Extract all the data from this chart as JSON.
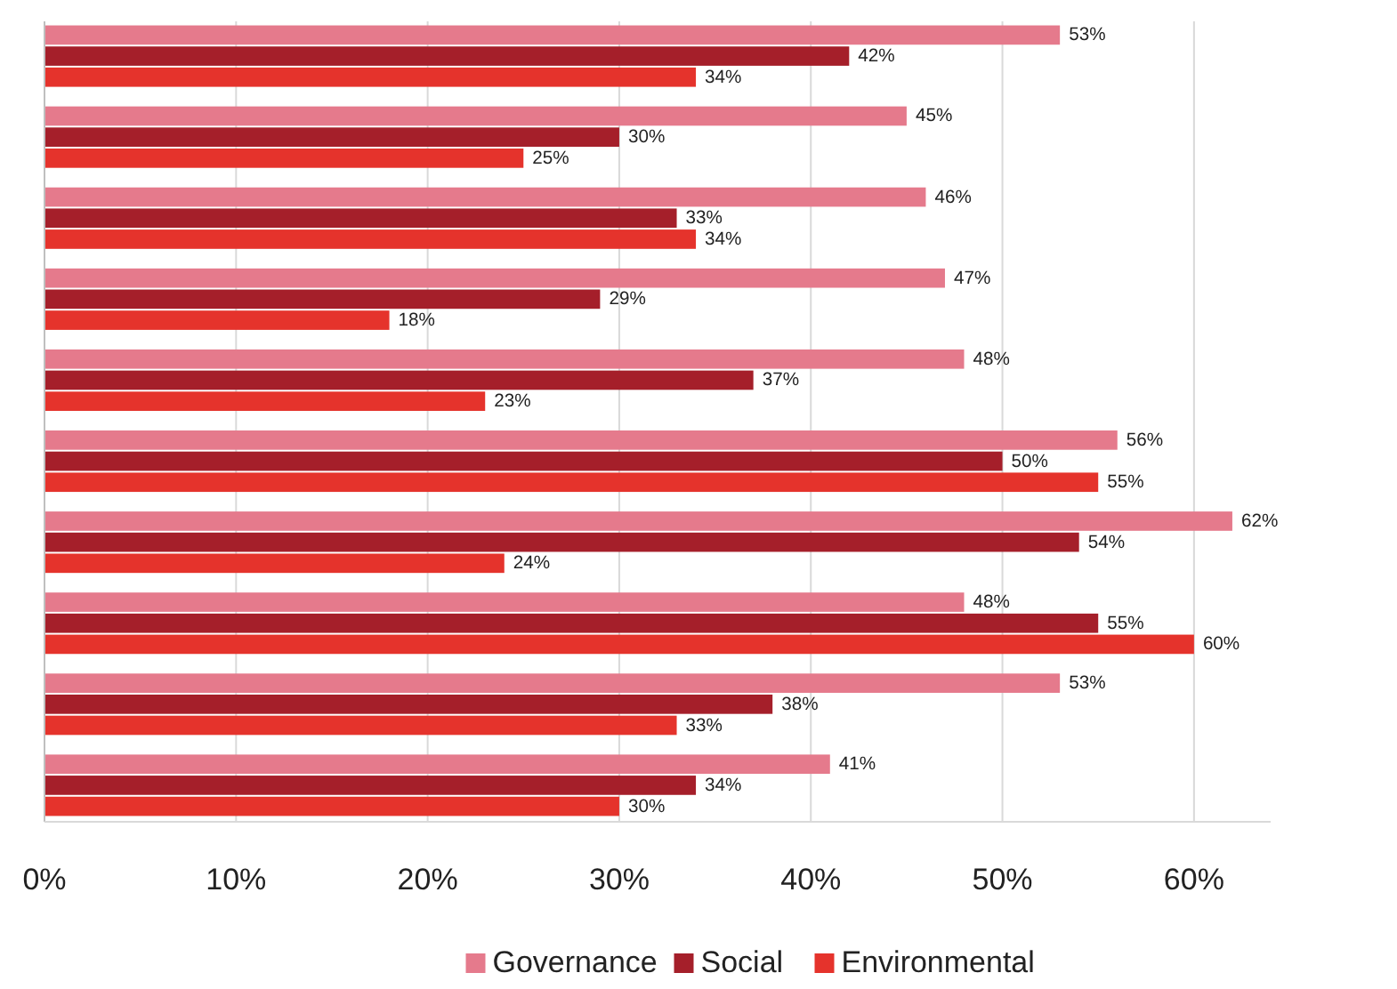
{
  "chart_data": {
    "type": "bar",
    "orientation": "horizontal",
    "categories": [
      null,
      null,
      null,
      null,
      null,
      null,
      null,
      null,
      null,
      null
    ],
    "series": [
      {
        "name": "Governance",
        "color": "#e57a8c",
        "values": [
          53,
          45,
          46,
          47,
          48,
          56,
          62,
          48,
          53,
          41
        ],
        "value_labels": [
          "53%",
          "45%",
          "46%",
          "47%",
          "48%",
          "56%",
          "62%",
          "48%",
          "53%",
          "41%"
        ]
      },
      {
        "name": "Social",
        "color": "#a51f2a",
        "values": [
          42,
          30,
          33,
          29,
          37,
          50,
          54,
          55,
          38,
          34
        ],
        "value_labels": [
          "42%",
          "30%",
          "33%",
          "29%",
          "37%",
          "50%",
          "54%",
          "55%",
          "38%",
          "34%"
        ]
      },
      {
        "name": "Environmental",
        "color": "#e5332c",
        "values": [
          34,
          25,
          34,
          18,
          23,
          55,
          24,
          60,
          33,
          30
        ],
        "value_labels": [
          "34%",
          "25%",
          "34%",
          "18%",
          "23%",
          "55%",
          "24%",
          "60%",
          "33%",
          "30%"
        ]
      }
    ],
    "xlim": [
      0,
      64
    ],
    "xticks": [
      {
        "value": 0,
        "label": "0%"
      },
      {
        "value": 10,
        "label": "10%"
      },
      {
        "value": 20,
        "label": "20%"
      },
      {
        "value": 30,
        "label": "30%"
      },
      {
        "value": 40,
        "label": "40%"
      },
      {
        "value": 50,
        "label": "50%"
      },
      {
        "value": 60,
        "label": "60%"
      }
    ],
    "grid": "x",
    "legend": "bottom"
  }
}
